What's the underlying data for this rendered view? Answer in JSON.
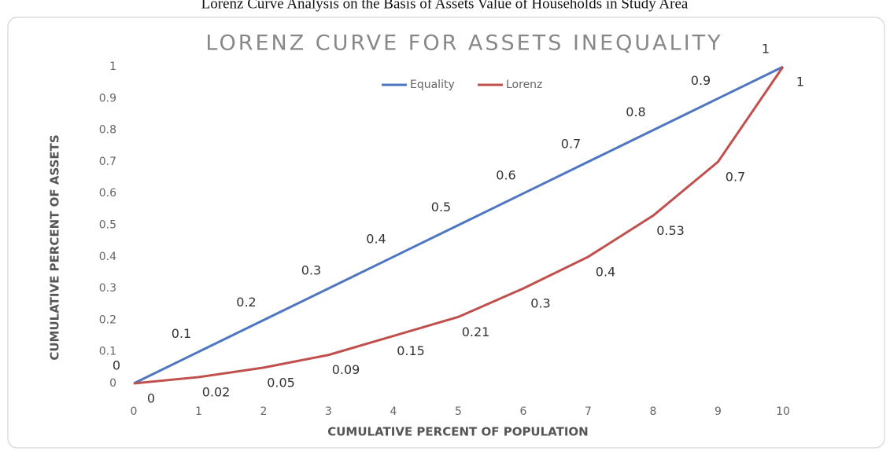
{
  "caption": "Lorenz Curve Analysis on the Basis of Assets Value of Households in Study Area",
  "chart_data": {
    "type": "line",
    "title": "LORENZ CURVE FOR ASSETS INEQUALITY",
    "x_label": "CUMULATIVE PERCENT OF POPULATION",
    "y_label": "CUMULATIVE PERCENT OF ASSETS",
    "x": [
      0,
      1,
      2,
      3,
      4,
      5,
      6,
      7,
      8,
      9,
      10
    ],
    "series": [
      {
        "name": "Equality",
        "color": "#4f76c0",
        "values": [
          0,
          0.1,
          0.2,
          0.3,
          0.4,
          0.5,
          0.6,
          0.7,
          0.8,
          0.9,
          1
        ]
      },
      {
        "name": "Lorenz",
        "color": "#c0504d",
        "values": [
          0,
          0.02,
          0.05,
          0.09,
          0.15,
          0.21,
          0.3,
          0.4,
          0.53,
          0.7,
          1
        ]
      }
    ],
    "xlim": [
      0,
      10
    ],
    "xticks": [
      0,
      1,
      2,
      3,
      4,
      5,
      6,
      7,
      8,
      9,
      10
    ],
    "ylim": [
      0,
      1
    ],
    "yticks": [
      0,
      0.1,
      0.2,
      0.3,
      0.4,
      0.5,
      0.6,
      0.7,
      0.8,
      0.9,
      1
    ],
    "legend": "top",
    "data_labels": true
  }
}
